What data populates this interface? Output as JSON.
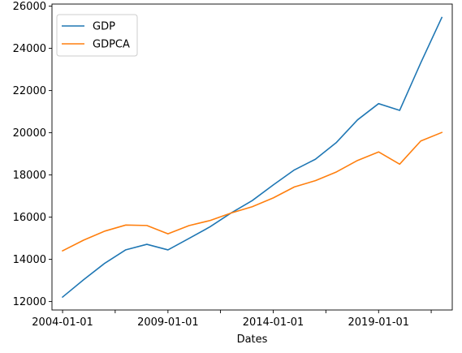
{
  "chart_data": {
    "type": "line",
    "title": "",
    "xlabel": "Dates",
    "ylabel": "",
    "x": [
      "2004-01-01",
      "2005-01-01",
      "2006-01-01",
      "2007-01-01",
      "2008-01-01",
      "2009-01-01",
      "2010-01-01",
      "2011-01-01",
      "2012-01-01",
      "2013-01-01",
      "2014-01-01",
      "2015-01-01",
      "2016-01-01",
      "2017-01-01",
      "2018-01-01",
      "2019-01-01",
      "2020-01-01",
      "2021-01-01",
      "2022-01-01"
    ],
    "x_ticks": [
      "2004-01-01",
      "2006-07-01",
      "2009-01-01",
      "2011-07-01",
      "2014-01-01",
      "2016-07-01",
      "2019-01-01",
      "2021-07-01"
    ],
    "x_tick_labels": [
      "2004-01-01",
      "",
      "2009-01-01",
      "",
      "2014-01-01",
      "",
      "2019-01-01",
      ""
    ],
    "xlim": [
      "2003-07-01",
      "2022-07-01"
    ],
    "ylim": [
      11600,
      26100
    ],
    "y_ticks": [
      12000,
      14000,
      16000,
      18000,
      20000,
      22000,
      24000,
      26000
    ],
    "y_tick_labels": [
      "12000",
      "14000",
      "16000",
      "18000",
      "20000",
      "22000",
      "24000",
      "26000"
    ],
    "grid": false,
    "legend_position": "top-left",
    "series": [
      {
        "name": "GDP",
        "color": "#1f77b4",
        "values": [
          12213,
          13037,
          13815,
          14452,
          14713,
          14449,
          14992,
          15543,
          16197,
          16785,
          17527,
          18238,
          18745,
          19543,
          20612,
          21381,
          21060,
          23315,
          25464
        ]
      },
      {
        "name": "GDPCA",
        "color": "#ff7f0e",
        "values": [
          14406,
          14913,
          15338,
          15626,
          15605,
          15209,
          15599,
          15841,
          16197,
          16495,
          16912,
          17432,
          17730,
          18144,
          18688,
          19092,
          18510,
          19610,
          20014
        ]
      }
    ]
  }
}
